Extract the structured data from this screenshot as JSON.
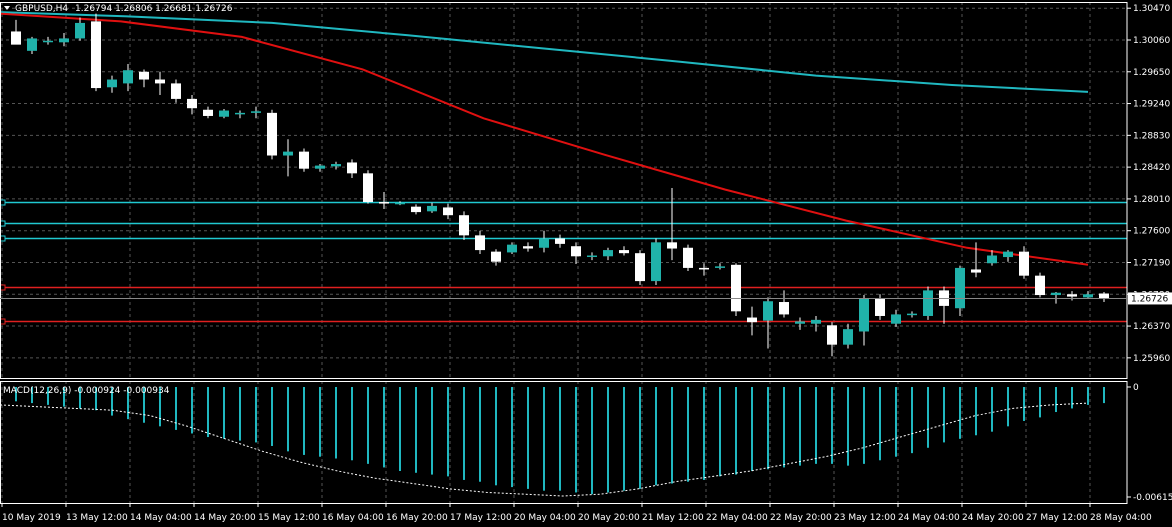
{
  "header": {
    "title": "GBPUSD,H4",
    "ohlc": "1.26794 1.26806 1.26681 1.26726"
  },
  "macd_header": "MACD(12,26,9) -0.000924 -0.000934",
  "colors": {
    "background": "#000000",
    "grid": "#555555",
    "bull_candle": "#20B2AA",
    "bear_candle": "#FFFFFF",
    "ma_fast": "#E01010",
    "ma_slow": "#20B8C0",
    "level_cyan": "#20C8D0",
    "level_red": "#E02020",
    "macd_hist": "#20B8C0",
    "macd_signal": "#FFFFFF"
  },
  "chart_data": [
    {
      "type": "candlestick",
      "title": "GBPUSD,H4",
      "ylim": [
        1.257,
        1.3055
      ],
      "y_ticks": [
        "1.30470",
        "1.30060",
        "1.29650",
        "1.29240",
        "1.28830",
        "1.28420",
        "1.28010",
        "1.27600",
        "1.27190",
        "1.26780",
        "1.26370",
        "1.25960"
      ],
      "current_price": "1.26726",
      "x_ticks": [
        "10 May 2019",
        "13 May 12:00",
        "14 May 04:00",
        "14 May 20:00",
        "15 May 12:00",
        "16 May 04:00",
        "16 May 20:00",
        "17 May 12:00",
        "20 May 04:00",
        "20 May 20:00",
        "21 May 12:00",
        "22 May 04:00",
        "22 May 20:00",
        "23 May 12:00",
        "24 May 04:00",
        "24 May 20:00",
        "27 May 12:00",
        "28 May 04:00"
      ],
      "candles": [
        {
          "o": 1.3017,
          "h": 1.3032,
          "l": 1.3002,
          "c": 1.3
        },
        {
          "o": 1.2992,
          "h": 1.301,
          "l": 1.2988,
          "c": 1.3008
        },
        {
          "o": 1.3005,
          "h": 1.301,
          "l": 1.3,
          "c": 1.3005
        },
        {
          "o": 1.3003,
          "h": 1.3015,
          "l": 1.2998,
          "c": 1.3008
        },
        {
          "o": 1.3008,
          "h": 1.3035,
          "l": 1.3005,
          "c": 1.3028
        },
        {
          "o": 1.303,
          "h": 1.304,
          "l": 1.294,
          "c": 1.2944
        },
        {
          "o": 1.2945,
          "h": 1.296,
          "l": 1.2938,
          "c": 1.2955
        },
        {
          "o": 1.295,
          "h": 1.2975,
          "l": 1.294,
          "c": 1.2967
        },
        {
          "o": 1.2965,
          "h": 1.2968,
          "l": 1.2945,
          "c": 1.2955
        },
        {
          "o": 1.2955,
          "h": 1.2965,
          "l": 1.2935,
          "c": 1.295
        },
        {
          "o": 1.295,
          "h": 1.2955,
          "l": 1.2925,
          "c": 1.293
        },
        {
          "o": 1.293,
          "h": 1.2935,
          "l": 1.291,
          "c": 1.2918
        },
        {
          "o": 1.2916,
          "h": 1.292,
          "l": 1.2905,
          "c": 1.2908
        },
        {
          "o": 1.2907,
          "h": 1.2917,
          "l": 1.2905,
          "c": 1.2915
        },
        {
          "o": 1.2912,
          "h": 1.2915,
          "l": 1.2905,
          "c": 1.2912
        },
        {
          "o": 1.2912,
          "h": 1.292,
          "l": 1.2905,
          "c": 1.2914
        },
        {
          "o": 1.2912,
          "h": 1.2916,
          "l": 1.2852,
          "c": 1.2857
        },
        {
          "o": 1.2857,
          "h": 1.2878,
          "l": 1.283,
          "c": 1.2862
        },
        {
          "o": 1.2862,
          "h": 1.2866,
          "l": 1.2836,
          "c": 1.284
        },
        {
          "o": 1.284,
          "h": 1.2846,
          "l": 1.2836,
          "c": 1.2844
        },
        {
          "o": 1.2843,
          "h": 1.2849,
          "l": 1.2839,
          "c": 1.2846
        },
        {
          "o": 1.2848,
          "h": 1.2852,
          "l": 1.2828,
          "c": 1.2834
        },
        {
          "o": 1.2834,
          "h": 1.2838,
          "l": 1.2795,
          "c": 1.2797
        },
        {
          "o": 1.2797,
          "h": 1.281,
          "l": 1.2788,
          "c": 1.2795
        },
        {
          "o": 1.2795,
          "h": 1.2798,
          "l": 1.2793,
          "c": 1.2796
        },
        {
          "o": 1.2791,
          "h": 1.2794,
          "l": 1.2781,
          "c": 1.2784
        },
        {
          "o": 1.2785,
          "h": 1.2796,
          "l": 1.2783,
          "c": 1.2792
        },
        {
          "o": 1.279,
          "h": 1.2795,
          "l": 1.2775,
          "c": 1.278
        },
        {
          "o": 1.278,
          "h": 1.2785,
          "l": 1.2748,
          "c": 1.2754
        },
        {
          "o": 1.2754,
          "h": 1.276,
          "l": 1.273,
          "c": 1.2735
        },
        {
          "o": 1.2733,
          "h": 1.2736,
          "l": 1.2715,
          "c": 1.272
        },
        {
          "o": 1.2732,
          "h": 1.2745,
          "l": 1.273,
          "c": 1.2742
        },
        {
          "o": 1.274,
          "h": 1.2745,
          "l": 1.2733,
          "c": 1.2737
        },
        {
          "o": 1.2738,
          "h": 1.276,
          "l": 1.2732,
          "c": 1.275
        },
        {
          "o": 1.275,
          "h": 1.2755,
          "l": 1.2738,
          "c": 1.2743
        },
        {
          "o": 1.274,
          "h": 1.2745,
          "l": 1.2717,
          "c": 1.2727
        },
        {
          "o": 1.2727,
          "h": 1.2732,
          "l": 1.2722,
          "c": 1.2728
        },
        {
          "o": 1.2727,
          "h": 1.2738,
          "l": 1.2722,
          "c": 1.2735
        },
        {
          "o": 1.2735,
          "h": 1.274,
          "l": 1.2728,
          "c": 1.2731
        },
        {
          "o": 1.2731,
          "h": 1.2735,
          "l": 1.269,
          "c": 1.2695
        },
        {
          "o": 1.2695,
          "h": 1.275,
          "l": 1.269,
          "c": 1.2745
        },
        {
          "o": 1.2745,
          "h": 1.2815,
          "l": 1.2722,
          "c": 1.2737
        },
        {
          "o": 1.2738,
          "h": 1.2742,
          "l": 1.2708,
          "c": 1.2712
        },
        {
          "o": 1.2712,
          "h": 1.2718,
          "l": 1.2702,
          "c": 1.271
        },
        {
          "o": 1.2712,
          "h": 1.2718,
          "l": 1.271,
          "c": 1.2714
        },
        {
          "o": 1.2716,
          "h": 1.2718,
          "l": 1.265,
          "c": 1.2656
        },
        {
          "o": 1.2648,
          "h": 1.2662,
          "l": 1.2625,
          "c": 1.2642
        },
        {
          "o": 1.2644,
          "h": 1.2674,
          "l": 1.2608,
          "c": 1.2669
        },
        {
          "o": 1.2668,
          "h": 1.2683,
          "l": 1.2648,
          "c": 1.2652
        },
        {
          "o": 1.264,
          "h": 1.2648,
          "l": 1.2632,
          "c": 1.2643
        },
        {
          "o": 1.264,
          "h": 1.265,
          "l": 1.263,
          "c": 1.2645
        },
        {
          "o": 1.2638,
          "h": 1.2642,
          "l": 1.2598,
          "c": 1.2613
        },
        {
          "o": 1.2613,
          "h": 1.264,
          "l": 1.2608,
          "c": 1.2633
        },
        {
          "o": 1.263,
          "h": 1.2677,
          "l": 1.2612,
          "c": 1.2672
        },
        {
          "o": 1.2672,
          "h": 1.2678,
          "l": 1.2645,
          "c": 1.265
        },
        {
          "o": 1.264,
          "h": 1.2658,
          "l": 1.2636,
          "c": 1.2652
        },
        {
          "o": 1.2652,
          "h": 1.2656,
          "l": 1.2648,
          "c": 1.2653
        },
        {
          "o": 1.265,
          "h": 1.2688,
          "l": 1.2645,
          "c": 1.2683
        },
        {
          "o": 1.2683,
          "h": 1.2688,
          "l": 1.264,
          "c": 1.2663
        },
        {
          "o": 1.266,
          "h": 1.2715,
          "l": 1.265,
          "c": 1.2712
        },
        {
          "o": 1.271,
          "h": 1.2745,
          "l": 1.27,
          "c": 1.2706
        },
        {
          "o": 1.2718,
          "h": 1.2735,
          "l": 1.2715,
          "c": 1.2728
        },
        {
          "o": 1.2726,
          "h": 1.2735,
          "l": 1.272,
          "c": 1.2733
        },
        {
          "o": 1.2733,
          "h": 1.274,
          "l": 1.2698,
          "c": 1.2702
        },
        {
          "o": 1.2702,
          "h": 1.2706,
          "l": 1.2674,
          "c": 1.2677
        },
        {
          "o": 1.2677,
          "h": 1.2681,
          "l": 1.2666,
          "c": 1.268
        },
        {
          "o": 1.2678,
          "h": 1.2682,
          "l": 1.267,
          "c": 1.2675
        },
        {
          "o": 1.2674,
          "h": 1.2682,
          "l": 1.2672,
          "c": 1.2678
        },
        {
          "o": 1.2679,
          "h": 1.2681,
          "l": 1.2668,
          "c": 1.2673
        }
      ],
      "ma_slow": [
        1.3042,
        1.3036,
        1.3028,
        1.3012,
        1.2995,
        1.2978,
        1.296,
        1.2948,
        1.2939
      ],
      "ma_fast": [
        1.304,
        1.303,
        1.301,
        1.2968,
        1.2905,
        1.2858,
        1.2813,
        1.2773,
        1.2738,
        1.2716
      ],
      "horizontal_levels": [
        {
          "price": 1.2797,
          "color": "cyan"
        },
        {
          "price": 1.277,
          "color": "cyan"
        },
        {
          "price": 1.275,
          "color": "cyan"
        },
        {
          "price": 1.2687,
          "color": "red"
        },
        {
          "price": 1.2644,
          "color": "red"
        }
      ]
    },
    {
      "type": "bar",
      "title": "MACD(12,26,9) -0.000924 -0.000934",
      "ylim": [
        -0.006154,
        0
      ],
      "y_ticks": [
        "0",
        "-0.006154"
      ],
      "histogram": [
        -0.0008,
        -0.0009,
        -0.001,
        -0.0011,
        -0.0012,
        -0.0013,
        -0.0016,
        -0.0018,
        -0.002,
        -0.0022,
        -0.0024,
        -0.0026,
        -0.0028,
        -0.0029,
        -0.003,
        -0.0031,
        -0.0033,
        -0.0036,
        -0.0038,
        -0.0039,
        -0.004,
        -0.0041,
        -0.0043,
        -0.0045,
        -0.0047,
        -0.0048,
        -0.0049,
        -0.005,
        -0.0052,
        -0.0053,
        -0.0055,
        -0.0056,
        -0.0057,
        -0.0058,
        -0.0058,
        -0.0059,
        -0.006,
        -0.0059,
        -0.0058,
        -0.0057,
        -0.0055,
        -0.0054,
        -0.0053,
        -0.0052,
        -0.005,
        -0.0049,
        -0.0047,
        -0.0046,
        -0.0045,
        -0.0044,
        -0.0043,
        -0.0043,
        -0.0044,
        -0.0043,
        -0.0041,
        -0.0039,
        -0.0037,
        -0.0034,
        -0.0031,
        -0.0029,
        -0.0027,
        -0.0025,
        -0.0022,
        -0.0019,
        -0.0017,
        -0.0014,
        -0.0012,
        -0.001,
        -0.0009
      ],
      "signal": [
        -0.001,
        -0.0011,
        -0.0012,
        -0.0013,
        -0.0016,
        -0.0022,
        -0.0029,
        -0.0036,
        -0.0042,
        -0.0047,
        -0.0051,
        -0.0054,
        -0.0057,
        -0.0059,
        -0.006,
        -0.0061,
        -0.006,
        -0.0057,
        -0.0053,
        -0.005,
        -0.0047,
        -0.0043,
        -0.0039,
        -0.0034,
        -0.0028,
        -0.0022,
        -0.0016,
        -0.0012,
        -0.001,
        -0.0009
      ]
    }
  ]
}
